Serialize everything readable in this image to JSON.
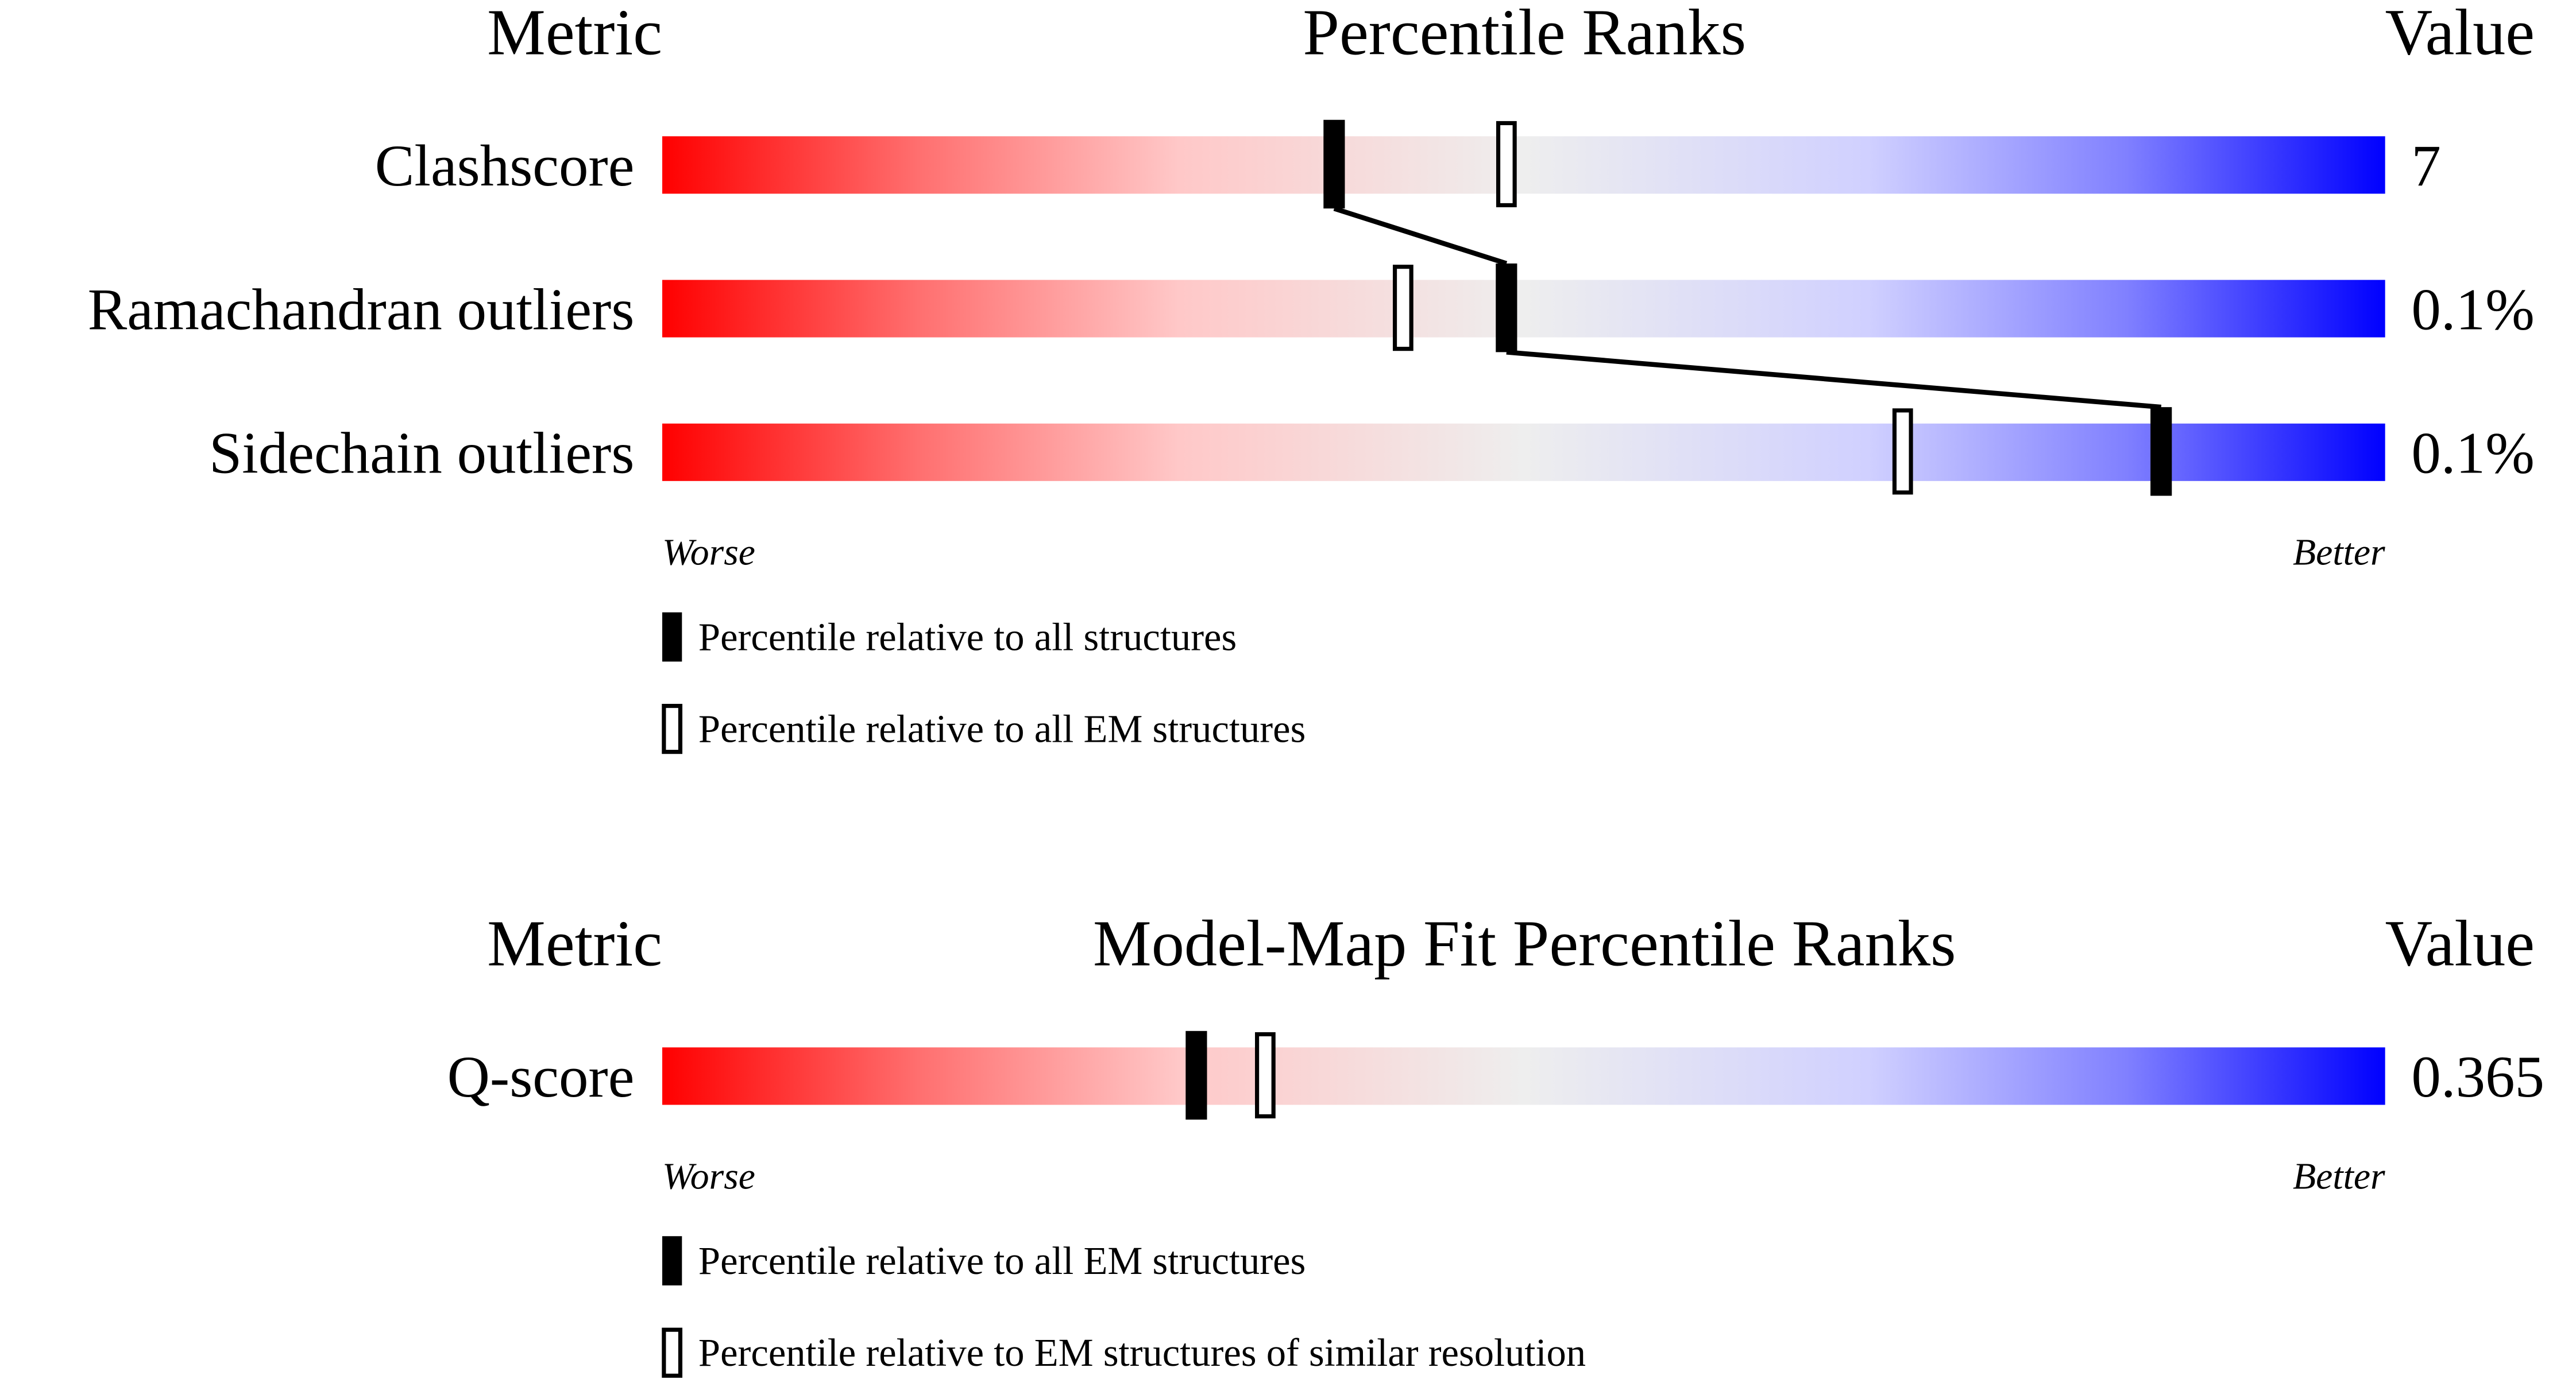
{
  "range": [
    0,
    100
  ],
  "panels": [
    {
      "header": {
        "metric": "Metric",
        "title": "Percentile Ranks",
        "value": "Value"
      },
      "rows": [
        {
          "metric": "Clashscore",
          "value": "7",
          "percentile_all": 39,
          "percentile_em": 49
        },
        {
          "metric": "Ramachandran outliers",
          "value": "0.1%",
          "percentile_all": 49,
          "percentile_em": 43
        },
        {
          "metric": "Sidechain outliers",
          "value": "0.1%",
          "percentile_all": 87,
          "percentile_em": 72
        }
      ],
      "worse": "Worse",
      "better": "Better",
      "legend": {
        "filled": "Percentile relative to all structures",
        "hollow": "Percentile relative to all EM structures"
      }
    },
    {
      "header": {
        "metric": "Metric",
        "title": "Model-Map Fit Percentile Ranks",
        "value": "Value"
      },
      "rows": [
        {
          "metric": "Q-score",
          "value": "0.365",
          "percentile_all": 31,
          "percentile_em": 35
        }
      ],
      "worse": "Worse",
      "better": "Better",
      "legend": {
        "filled": "Percentile relative to all EM structures",
        "hollow": "Percentile relative to EM structures of similar resolution"
      }
    }
  ]
}
